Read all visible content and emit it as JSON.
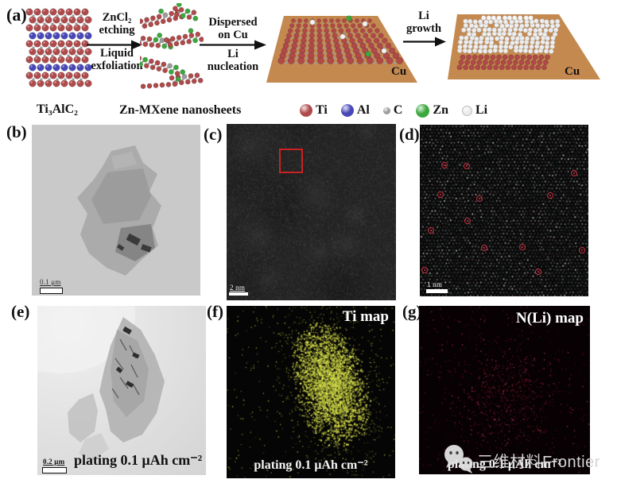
{
  "schematic": {
    "label": "(a)",
    "reactant_label": "Ti₃AlC₂",
    "product_label": "Zn-MXene nanosheets",
    "steps": {
      "arrow1_top": [
        "ZnCl₂",
        "etching"
      ],
      "arrow1_bottom": [
        "Liquid",
        "exfoliation"
      ],
      "arrow2_top": [
        "Dispersed",
        "on Cu"
      ],
      "arrow2_bottom": [
        "Li",
        "nucleation"
      ],
      "arrow3_top": [
        "Li",
        "growth"
      ]
    },
    "substrate1_label": "Cu",
    "substrate2_label": "Cu",
    "substrate_color": "#c4894f",
    "legend": [
      {
        "name": "Ti",
        "color": "#b04a4a"
      },
      {
        "name": "Al",
        "color": "#4747b8"
      },
      {
        "name": "C",
        "color": "#9b9b9b"
      },
      {
        "name": "Zn",
        "color": "#3aa83c"
      },
      {
        "name": "Li",
        "color": "#ececec"
      }
    ]
  },
  "panels": {
    "b": {
      "label": "(b)",
      "scale_bar": "0.1 μm"
    },
    "c": {
      "label": "(c)",
      "scale_bar": "2 nm",
      "box_color": "#cc2222"
    },
    "d": {
      "label": "(d)",
      "scale_bar": "1 nm",
      "marker_color": "#c1303f",
      "markers": [
        [
          0.146,
          0.236
        ],
        [
          0.278,
          0.241
        ],
        [
          0.915,
          0.282
        ],
        [
          0.123,
          0.407
        ],
        [
          0.354,
          0.431
        ],
        [
          0.774,
          0.412
        ],
        [
          0.283,
          0.56
        ],
        [
          0.066,
          0.616
        ],
        [
          0.382,
          0.718
        ],
        [
          0.609,
          0.713
        ],
        [
          0.96,
          0.731
        ],
        [
          0.03,
          0.847
        ],
        [
          0.703,
          0.856
        ]
      ]
    },
    "e": {
      "label": "(e)",
      "scale_bar": "0.2 μm",
      "caption": "plating 0.1 μAh cm⁻²"
    },
    "f": {
      "label": "(f)",
      "title": "Ti map",
      "caption": "plating 0.1 μAh cm⁻²",
      "dot_color": "#ccd23f"
    },
    "g": {
      "label": "(g)",
      "title": "N(Li) map",
      "caption": "plating 0.1 μAh cm⁻²",
      "dot_color": "#a02240"
    }
  },
  "watermark": {
    "icon": "wechat-icon",
    "text": "三维材料Frontier"
  }
}
